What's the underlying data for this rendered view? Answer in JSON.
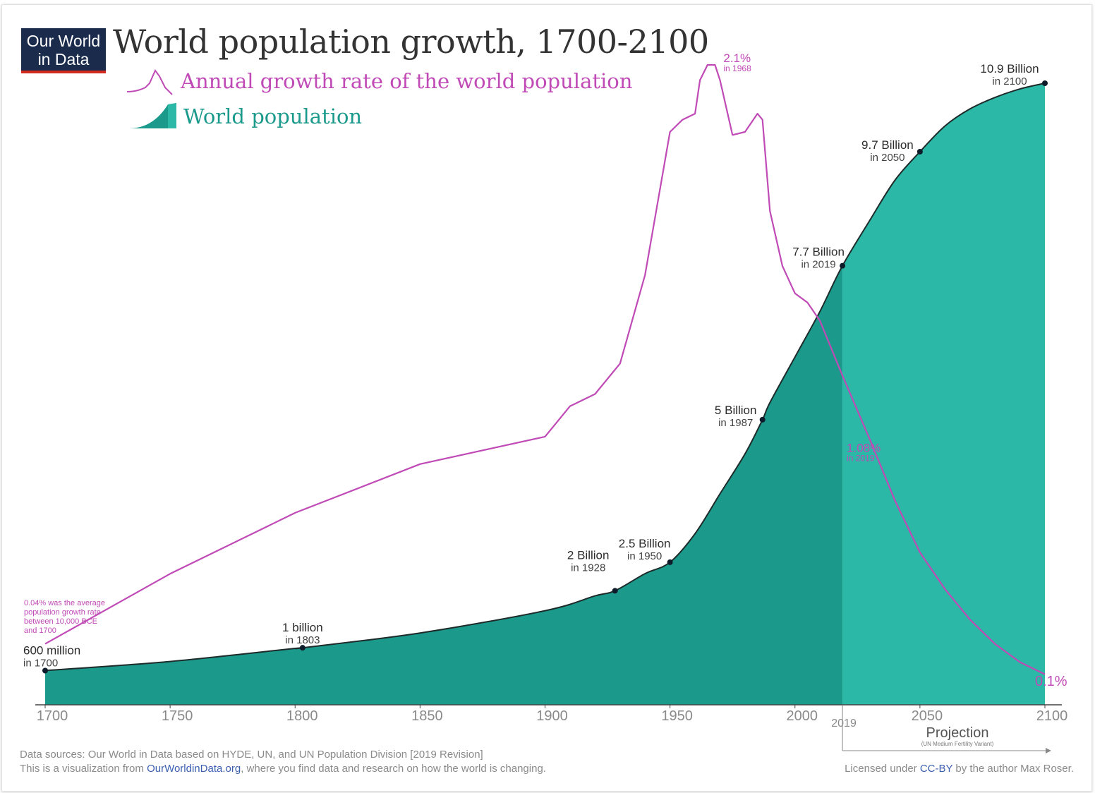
{
  "logo": {
    "line1": "Our World",
    "line2": "in Data",
    "bg": "#1a2b4c",
    "accent": "#d42b21"
  },
  "title": "World population growth, 1700-2100",
  "legend": {
    "growth_label": "Annual growth rate of the world population",
    "population_label": "World population"
  },
  "colors": {
    "growth_line": "#c04ab6",
    "population_fill": "#1b9a8c",
    "projection_fill": "#2bb8a6",
    "axis": "#444444"
  },
  "footer": {
    "sources": "Data sources: Our World in Data based on HYDE, UN, and UN Population Division [2019 Revision]",
    "viz_prefix": "This is a visualization from ",
    "viz_link": "OurWorldinData.org",
    "viz_suffix": ", where you find data and research on how the world is changing.",
    "license_prefix": "Licensed under ",
    "license_link": "CC-BY",
    "license_suffix": " by the author Max Roser."
  },
  "chart_data": {
    "type": "area",
    "title": "World population growth, 1700-2100",
    "x_ticks": [
      1700,
      1750,
      1800,
      1850,
      1900,
      1950,
      2000,
      2050,
      2100
    ],
    "xlim": [
      1700,
      2100
    ],
    "projection_start": 2019,
    "projection_tick_label": "2019",
    "projection_label": "Projection",
    "projection_sublabel": "(UN Medium Fertility Variant)",
    "series": [
      {
        "name": "World population",
        "unit": "billions",
        "ylim": [
          0,
          11.2
        ],
        "points": [
          [
            1700,
            0.6
          ],
          [
            1750,
            0.76
          ],
          [
            1800,
            0.99
          ],
          [
            1803,
            1.0
          ],
          [
            1850,
            1.26
          ],
          [
            1900,
            1.65
          ],
          [
            1920,
            1.91
          ],
          [
            1928,
            2.0
          ],
          [
            1940,
            2.3
          ],
          [
            1950,
            2.5
          ],
          [
            1960,
            3.0
          ],
          [
            1970,
            3.7
          ],
          [
            1980,
            4.4
          ],
          [
            1987,
            5.0
          ],
          [
            1990,
            5.3
          ],
          [
            2000,
            6.1
          ],
          [
            2010,
            6.9
          ],
          [
            2019,
            7.7
          ],
          [
            2030,
            8.5
          ],
          [
            2040,
            9.2
          ],
          [
            2050,
            9.7
          ],
          [
            2060,
            10.15
          ],
          [
            2070,
            10.45
          ],
          [
            2080,
            10.65
          ],
          [
            2090,
            10.8
          ],
          [
            2100,
            10.9
          ]
        ]
      },
      {
        "name": "Annual growth rate of the world population",
        "unit": "percent",
        "ylim": [
          0,
          2.2
        ],
        "points": [
          [
            1700,
            0.2
          ],
          [
            1750,
            0.43
          ],
          [
            1800,
            0.63
          ],
          [
            1850,
            0.79
          ],
          [
            1900,
            0.88
          ],
          [
            1910,
            0.98
          ],
          [
            1920,
            1.02
          ],
          [
            1930,
            1.12
          ],
          [
            1940,
            1.41
          ],
          [
            1950,
            1.88
          ],
          [
            1955,
            1.92
          ],
          [
            1960,
            1.94
          ],
          [
            1962,
            2.05
          ],
          [
            1965,
            2.1
          ],
          [
            1968,
            2.1
          ],
          [
            1970,
            2.05
          ],
          [
            1975,
            1.87
          ],
          [
            1980,
            1.88
          ],
          [
            1985,
            1.94
          ],
          [
            1987,
            1.92
          ],
          [
            1990,
            1.62
          ],
          [
            1995,
            1.44
          ],
          [
            2000,
            1.35
          ],
          [
            2005,
            1.32
          ],
          [
            2010,
            1.26
          ],
          [
            2019,
            1.08
          ],
          [
            2030,
            0.87
          ],
          [
            2040,
            0.67
          ],
          [
            2050,
            0.5
          ],
          [
            2060,
            0.38
          ],
          [
            2070,
            0.28
          ],
          [
            2080,
            0.2
          ],
          [
            2090,
            0.14
          ],
          [
            2100,
            0.1
          ]
        ]
      }
    ],
    "population_annotations": [
      {
        "x": 1700,
        "y": 0.6,
        "label": "600 million",
        "sub": "in 1700"
      },
      {
        "x": 1803,
        "y": 1.0,
        "label": "1 billion",
        "sub": "in 1803"
      },
      {
        "x": 1928,
        "y": 2.0,
        "label": "2 Billion",
        "sub": "in 1928"
      },
      {
        "x": 1950,
        "y": 2.5,
        "label": "2.5 Billion",
        "sub": "in 1950"
      },
      {
        "x": 1987,
        "y": 5.0,
        "label": "5 Billion",
        "sub": "in 1987"
      },
      {
        "x": 2019,
        "y": 7.7,
        "label": "7.7 Billion",
        "sub": "in 2019"
      },
      {
        "x": 2050,
        "y": 9.7,
        "label": "9.7 Billion",
        "sub": "in 2050"
      },
      {
        "x": 2100,
        "y": 10.9,
        "label": "10.9 Billion",
        "sub": "in 2100"
      }
    ],
    "growth_annotations": [
      {
        "x": 1968,
        "label": "2.1%",
        "sub": "in 1968"
      },
      {
        "x": 2019,
        "label": "1.08%",
        "sub": "in 2019"
      },
      {
        "x": 2100,
        "label": "0.1%",
        "sub": ""
      }
    ],
    "growth_note": [
      "0.04% was the average",
      "population growth rate",
      "between 10,000 BCE",
      "and 1700"
    ]
  }
}
